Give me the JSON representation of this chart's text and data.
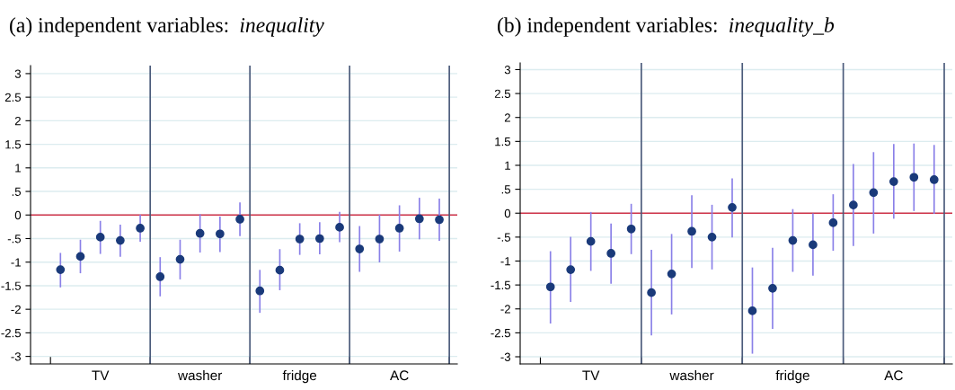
{
  "chart_data": [
    {
      "type": "scatter",
      "title": "(a) independent variables: inequality",
      "categories": [
        null,
        null,
        "TV",
        null,
        null,
        null,
        null,
        "washer",
        null,
        null,
        null,
        null,
        "fridge",
        null,
        null,
        null,
        null,
        "AC",
        null,
        null
      ],
      "series": [
        {
          "color": "#1a3a7a",
          "values": [
            -1.16,
            -0.88,
            -0.47,
            -0.54,
            -0.28,
            -1.31,
            -0.94,
            -0.39,
            -0.4,
            -0.09,
            -1.61,
            -1.17,
            -0.51,
            -0.5,
            -0.26,
            -0.72,
            -0.51,
            -0.28,
            -0.08,
            -0.1
          ],
          "errors": [
            [
              -1.52,
              -0.82
            ],
            [
              -1.22,
              -0.54
            ],
            [
              -0.81,
              -0.14
            ],
            [
              -0.87,
              -0.22
            ],
            [
              -0.55,
              -0.01
            ],
            [
              -1.71,
              -0.91
            ],
            [
              -1.35,
              -0.54
            ],
            [
              -0.78,
              0
            ],
            [
              -0.77,
              -0.05
            ],
            [
              -0.43,
              0.25
            ],
            [
              -2.06,
              -1.18
            ],
            [
              -1.58,
              -0.74
            ],
            [
              -0.83,
              -0.19
            ],
            [
              -0.82,
              -0.17
            ],
            [
              -0.56,
              0.05
            ],
            [
              -1.19,
              -0.25
            ],
            [
              -0.99,
              -0.01
            ],
            [
              -0.76,
              0.19
            ],
            [
              -0.5,
              0.35
            ],
            [
              -0.53,
              0.33
            ]
          ]
        }
      ],
      "marker": "circle",
      "grid": "y",
      "ylim": [
        -3.16,
        3.17
      ],
      "yticks": [
        {
          "value": -3,
          "label": "-3"
        },
        {
          "value": -2.5,
          "label": "-2.5"
        },
        {
          "value": -2,
          "label": "-2"
        },
        {
          "value": -1.5,
          "label": "-1.5"
        },
        {
          "value": -1,
          "label": "-1"
        },
        {
          "value": -0.5,
          "label": "-.5"
        },
        0,
        {
          "value": 0.5,
          "label": ".5"
        },
        1,
        1.5,
        2,
        2.5,
        3
      ],
      "ref_lines": [
        {
          "axis": "y",
          "value": 0,
          "color": "#d0344a"
        }
      ]
    },
    {
      "type": "scatter",
      "title": "(b) independent variables: inequality_b",
      "categories": [
        null,
        null,
        "TV",
        null,
        null,
        null,
        null,
        "washer",
        null,
        null,
        null,
        null,
        "fridge",
        null,
        null,
        null,
        null,
        "AC",
        null,
        null
      ],
      "series": [
        {
          "color": "#1a3a7a",
          "values": [
            -1.54,
            -1.18,
            -0.59,
            -0.84,
            -0.33,
            -1.66,
            -1.27,
            -0.38,
            -0.5,
            0.12,
            -2.04,
            -1.57,
            -0.57,
            -0.66,
            -0.2,
            0.17,
            0.43,
            0.66,
            0.75,
            0.7
          ],
          "errors": [
            [
              -2.29,
              -0.81
            ],
            [
              -1.84,
              -0.51
            ],
            [
              -1.19,
              0.01
            ],
            [
              -1.46,
              -0.23
            ],
            [
              -0.84,
              0.18
            ],
            [
              -2.54,
              -0.78
            ],
            [
              -2.1,
              -0.45
            ],
            [
              -1.13,
              0.36
            ],
            [
              -1.16,
              0.16
            ],
            [
              -0.49,
              0.71
            ],
            [
              -2.92,
              -1.15
            ],
            [
              -2.4,
              -0.74
            ],
            [
              -1.21,
              0.07
            ],
            [
              -1.29,
              -0.02
            ],
            [
              -0.77,
              0.38
            ],
            [
              -0.67,
              1.01
            ],
            [
              -0.41,
              1.26
            ],
            [
              -0.1,
              1.43
            ],
            [
              0.06,
              1.44
            ],
            [
              0,
              1.41
            ]
          ]
        }
      ],
      "marker": "circle",
      "grid": "y",
      "ylim": [
        -3.15,
        3.14
      ],
      "yticks": [
        {
          "value": -3,
          "label": "-3"
        },
        {
          "value": -2.5,
          "label": "-2.5"
        },
        {
          "value": -2,
          "label": "-2"
        },
        {
          "value": -1.5,
          "label": "-1.5"
        },
        {
          "value": -1,
          "label": "-1"
        },
        {
          "value": -0.5,
          "label": "-.5"
        },
        0,
        {
          "value": 0.5,
          "label": ".5"
        },
        1,
        1.5,
        2,
        2.5,
        3
      ],
      "ref_lines": [
        {
          "axis": "y",
          "value": 0,
          "color": "#d0344a"
        }
      ]
    }
  ]
}
